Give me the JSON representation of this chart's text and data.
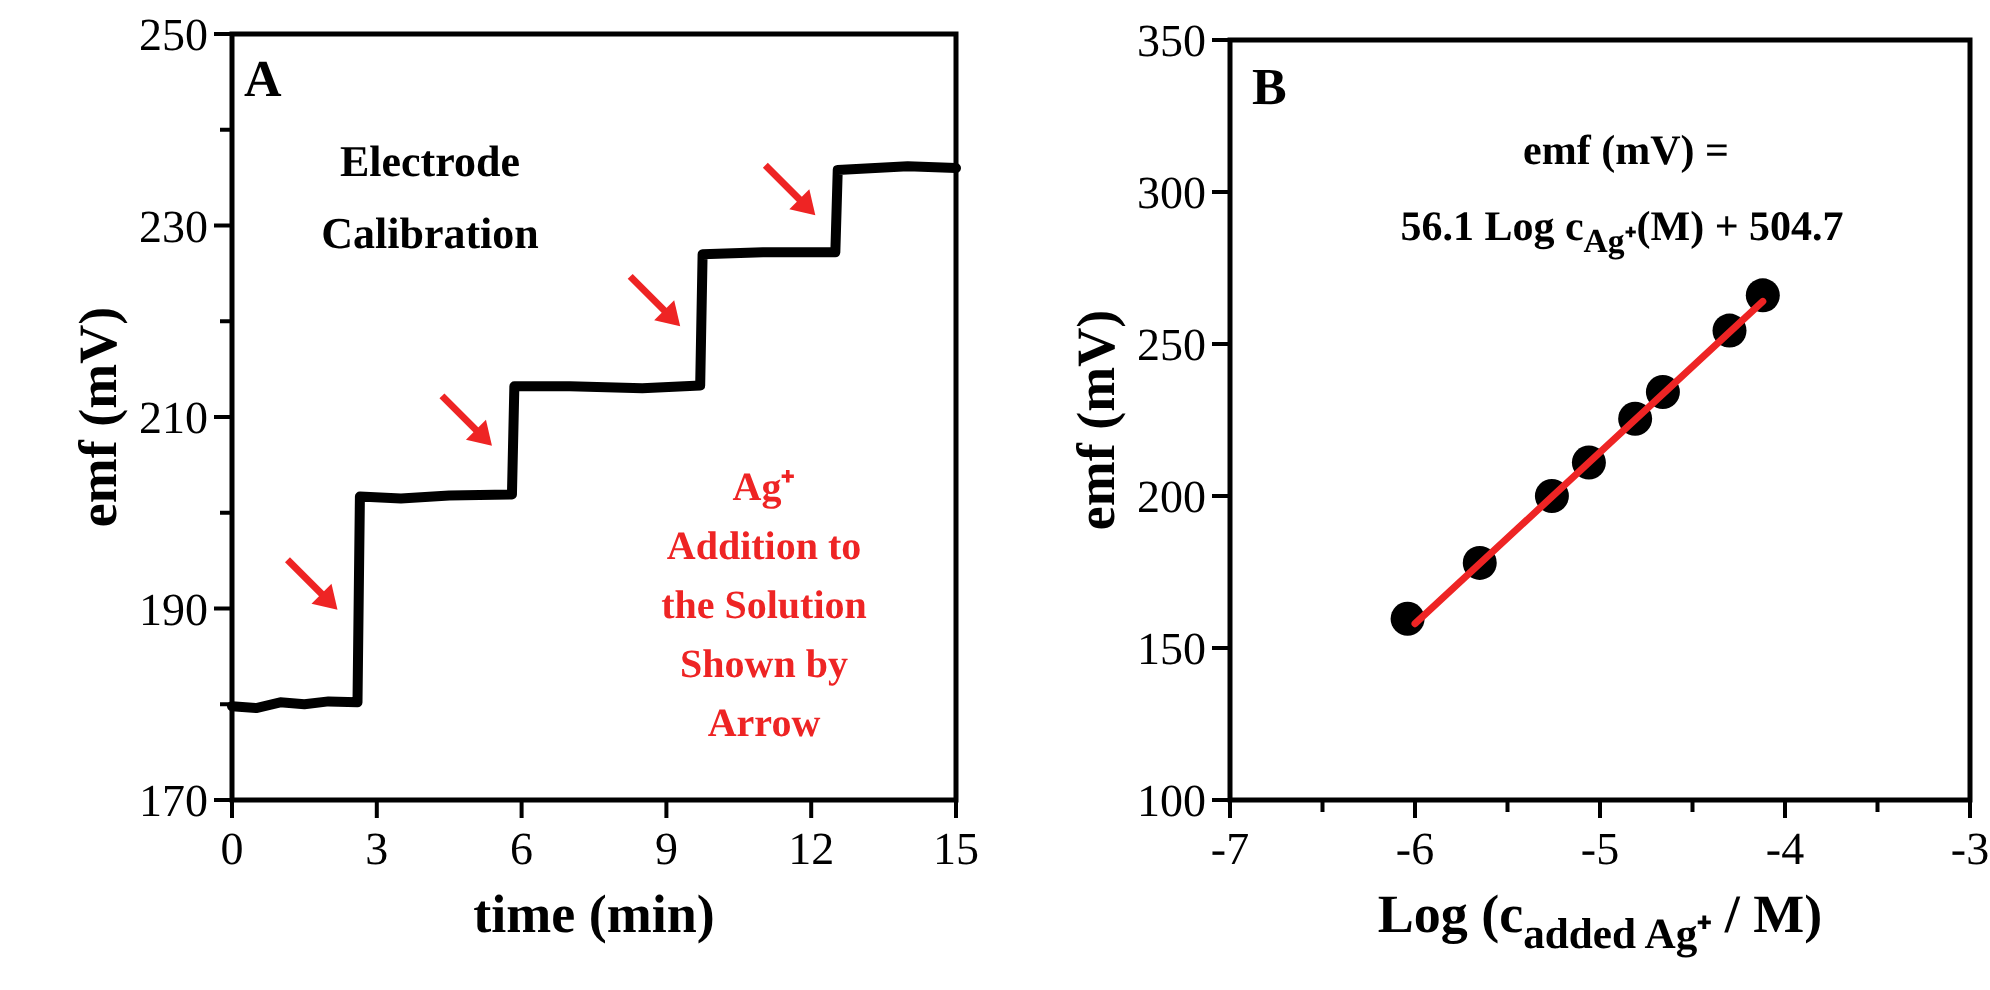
{
  "chart_data": [
    {
      "type": "line",
      "xlabel": "time (min)",
      "ylabel": "emf (mV)",
      "xlim": [
        0,
        15
      ],
      "ylim": [
        170,
        250
      ],
      "xticks": [
        0,
        3,
        6,
        9,
        12,
        15
      ],
      "yticks": [
        170,
        {
          "value": 180,
          "label": null
        },
        190,
        {
          "value": 200,
          "label": null
        },
        210,
        {
          "value": 220,
          "label": null
        },
        230,
        {
          "value": 240,
          "label": null
        },
        250
      ],
      "series": [
        {
          "color": "#000000",
          "x": [
            0,
            0.5,
            1,
            1.5,
            2,
            2.6,
            2.65,
            3.5,
            4.5,
            5.8,
            5.85,
            7,
            8.5,
            9.7,
            9.75,
            11,
            12.5,
            12.55,
            14,
            15
          ],
          "values": [
            179.8,
            179.6,
            180.2,
            180,
            180.3,
            180.2,
            201.7,
            201.5,
            201.8,
            201.9,
            213.2,
            213.2,
            213,
            213.3,
            227,
            227.2,
            227.2,
            235.8,
            236.2,
            236
          ]
        }
      ],
      "annotations": [
        "A",
        "Electrode Calibration",
        "Ag⁺ Addition to the Solution Shown by Arrow"
      ]
    },
    {
      "type": "scatter",
      "xlabel": "Log (c$_{added Ag⁺}$ / M)",
      "ylabel": "emf (mV)",
      "xlim": [
        -7,
        -3
      ],
      "ylim": [
        100,
        350
      ],
      "xticks": [
        -7,
        {
          "value": -6.5,
          "label": null
        },
        -6,
        {
          "value": -5.5,
          "label": null
        },
        -5,
        {
          "value": -4.5,
          "label": null
        },
        -4,
        {
          "value": -3.5,
          "label": null
        },
        -3
      ],
      "yticks": [
        100,
        150,
        200,
        250,
        300,
        350
      ],
      "series": [
        {
          "type": "scatter",
          "marker": "circle",
          "color": "#000000",
          "x": [
            -6.04,
            -5.65,
            -5.26,
            -5.06,
            -4.81,
            -4.66,
            -4.3,
            -4.12
          ],
          "values": [
            159.6,
            178,
            200,
            211,
            225.4,
            234.2,
            254.4,
            266
          ]
        },
        {
          "type": "line",
          "marker": "none",
          "color": "#ee2424",
          "x": [
            -6.0,
            -4.12
          ],
          "values": [
            158,
            264
          ]
        }
      ],
      "annotations": [
        "B",
        "emf (mV) =",
        "56.1 Log c$_{Ag⁺}$(M) + 504.7"
      ]
    }
  ]
}
